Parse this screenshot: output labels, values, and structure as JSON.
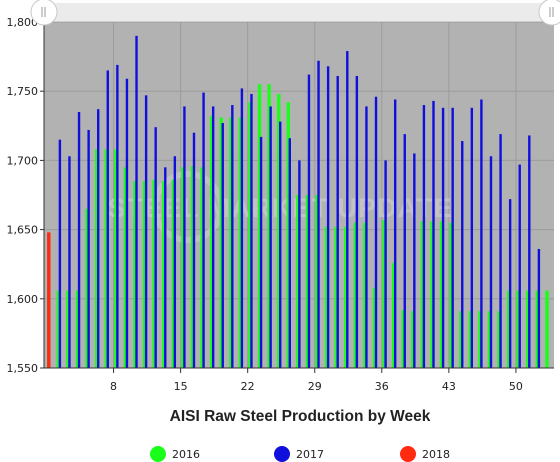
{
  "chart_data": {
    "type": "bar",
    "title": "AISI Raw Steel Production by Week",
    "xlabel": "",
    "ylabel": "",
    "ylim": [
      1550,
      1800
    ],
    "yticks": [
      "1,550",
      "1,600",
      "1,650",
      "1,700",
      "1,750",
      "1,800"
    ],
    "xticks": [
      8,
      15,
      22,
      29,
      36,
      43,
      50
    ],
    "x": [
      1,
      2,
      3,
      4,
      5,
      6,
      7,
      8,
      9,
      10,
      11,
      12,
      13,
      14,
      15,
      16,
      17,
      18,
      19,
      20,
      21,
      22,
      23,
      24,
      25,
      26,
      27,
      28,
      29,
      30,
      31,
      32,
      33,
      34,
      35,
      36,
      37,
      38,
      39,
      40,
      41,
      42,
      43,
      44,
      45,
      46,
      47,
      48,
      49,
      50,
      51,
      52,
      53
    ],
    "series": [
      {
        "name": "2016",
        "color": "#19ff19",
        "values": [
          1606,
          1606,
          1606,
          1606,
          1665,
          1708,
          1708,
          1708,
          1695,
          1685,
          1685,
          1686,
          1685,
          1686,
          1695,
          1696,
          1695,
          1732,
          1731,
          1731,
          1731,
          1742,
          1755,
          1755,
          1748,
          1742,
          1675,
          1675,
          1675,
          1652,
          1652,
          1652,
          1655,
          1655,
          1608,
          1657,
          1626,
          1592,
          1591,
          1656,
          1656,
          1656,
          1655,
          1591,
          1591,
          1591,
          1591,
          1591,
          1606,
          1606,
          1606,
          1606,
          1606
        ]
      },
      {
        "name": "2017",
        "color": "#1010dd",
        "values": [
          null,
          1715,
          1703,
          1735,
          1722,
          1737,
          1765,
          1769,
          1759,
          1790,
          1747,
          1724,
          1695,
          1703,
          1739,
          1720,
          1749,
          1739,
          1727,
          1740,
          1752,
          1748,
          1717,
          1739,
          1728,
          1716,
          1700,
          1762,
          1772,
          1768,
          1761,
          1779,
          1761,
          1739,
          1746,
          1700,
          1744,
          1719,
          1705,
          1740,
          1743,
          1738,
          1738,
          1714,
          1738,
          1744,
          1703,
          1719,
          1672,
          1697,
          1718,
          1636,
          null
        ]
      },
      {
        "name": "2018",
        "color": "#ff2a10",
        "values": [
          1648,
          null,
          null,
          null,
          null,
          null,
          null,
          null,
          null,
          null,
          null,
          null,
          null,
          null,
          null,
          null,
          null,
          null,
          null,
          null,
          null,
          null,
          null,
          null,
          null,
          null,
          null,
          null,
          null,
          null,
          null,
          null,
          null,
          null,
          null,
          null,
          null,
          null,
          null,
          null,
          null,
          null,
          null,
          null,
          null,
          null,
          null,
          null,
          null,
          null,
          null,
          null,
          null
        ]
      }
    ],
    "grid": true,
    "legend": "bottom",
    "plot_background": "#b2b2b2",
    "watermark": "STEEL MARKET UPDATE"
  }
}
